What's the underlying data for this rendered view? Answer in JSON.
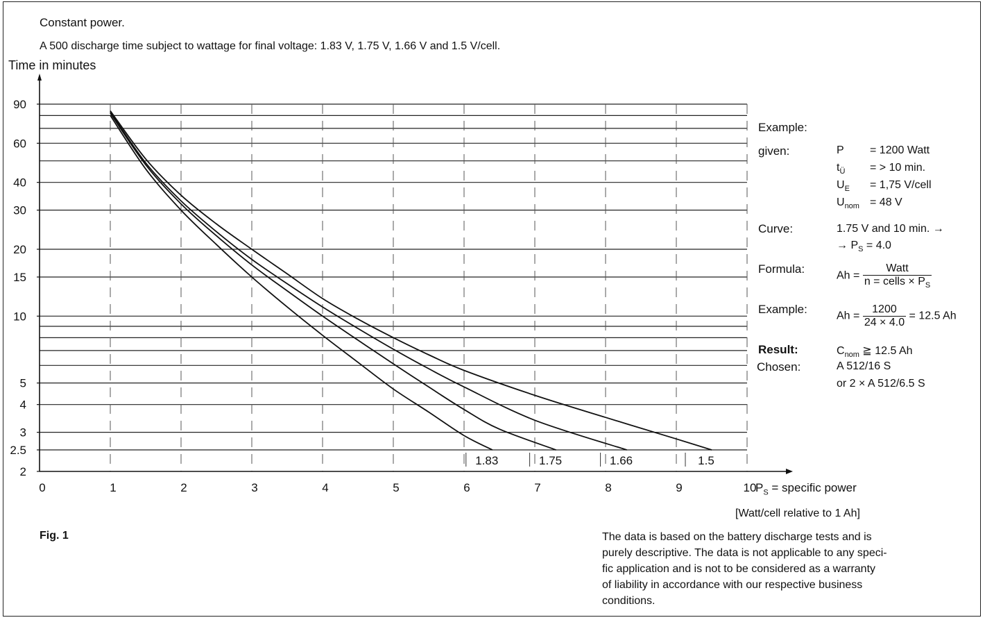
{
  "header": {
    "line1": "Constant power.",
    "line2": "A 500 discharge time subject to wattage for final voltage: 1.83 V, 1.75 V, 1.66 V and 1.5 V/cell."
  },
  "chart_data": {
    "type": "line",
    "title": "A 500 discharge time subject to wattage for final voltage: 1.83 V, 1.75 V, 1.66 V and 1.5 V/cell.",
    "ylabel": "Time in minutes",
    "xlabel": "P_S = specific power",
    "xlabel_units": "[Watt/cell relative to 1 Ah]",
    "x_ticks": [
      0,
      1,
      2,
      3,
      4,
      5,
      6,
      7,
      8,
      9,
      10
    ],
    "y_ticks": [
      2,
      2.5,
      3,
      4,
      5,
      10,
      15,
      20,
      30,
      40,
      60,
      90
    ],
    "y_scale": "log",
    "xlim": [
      0,
      10
    ],
    "ylim": [
      2,
      120
    ],
    "grid": true,
    "series": [
      {
        "name": "1.83",
        "x": [
          1,
          1.5,
          2,
          2.5,
          3,
          3.5,
          4,
          4.5,
          5,
          5.5,
          6,
          6.4
        ],
        "y": [
          80,
          46,
          30,
          21,
          15,
          11,
          8.2,
          6.2,
          4.7,
          3.7,
          2.9,
          2.5
        ]
      },
      {
        "name": "1.75",
        "x": [
          1,
          1.5,
          2,
          2.5,
          3,
          3.5,
          4,
          4.5,
          5,
          5.5,
          6,
          6.5,
          7.3
        ],
        "y": [
          82,
          48,
          32,
          23,
          17,
          13,
          10,
          7.8,
          6.1,
          4.8,
          3.8,
          3.1,
          2.5
        ]
      },
      {
        "name": "1.66",
        "x": [
          1,
          1.5,
          2,
          2.5,
          3,
          3.5,
          4,
          4.5,
          5,
          5.5,
          6,
          7,
          8.3
        ],
        "y": [
          83,
          49,
          33,
          24,
          18,
          14,
          11,
          8.8,
          7.1,
          5.8,
          4.8,
          3.4,
          2.5
        ]
      },
      {
        "name": "1.5",
        "x": [
          1,
          1.5,
          2,
          2.5,
          3,
          3.5,
          4,
          4.5,
          5,
          5.5,
          6,
          7,
          8,
          9,
          9.5
        ],
        "y": [
          84,
          51,
          35,
          26,
          20,
          15.5,
          12,
          9.7,
          8,
          6.7,
          5.7,
          4.4,
          3.5,
          2.8,
          2.5
        ]
      }
    ]
  },
  "fig_label": "Fig. 1",
  "example": {
    "heading": "Example:",
    "given_label": "given:",
    "given_items": [
      {
        "sym": "P",
        "sub": "",
        "val": "= 1200 Watt"
      },
      {
        "sym": "t",
        "sub": "Ü",
        "val": "= > 10 min."
      },
      {
        "sym": "U",
        "sub": "E",
        "val": "= 1,75 V/cell"
      },
      {
        "sym": "U",
        "sub": "nom",
        "val": "= 48 V"
      }
    ],
    "curve_label": "Curve:",
    "curve_line1": "1.75 V and 10 min. →",
    "curve_line2_pre": "→ P",
    "curve_line2_sub": "S",
    "curve_line2_post": " = 4.0",
    "formula_label": "Formula:",
    "formula_lhs": "Ah =",
    "formula_num": "Watt",
    "formula_den_pre": "n = cells × P",
    "formula_den_sub": "S",
    "example2_label": "Example:",
    "example2_lhs": "Ah =",
    "example2_num": "1200",
    "example2_den": "24 × 4.0",
    "example2_rhs": "= 12.5 Ah",
    "result_label": "Result:",
    "result_pre": "C",
    "result_sub": "nom",
    "result_post": " ≧ 12.5 Ah",
    "chosen_label": "Chosen:",
    "chosen_line1": "A 512/16 S",
    "chosen_line2": "or 2 × A 512/6.5 S"
  },
  "x_axis_title_pre": "P",
  "x_axis_title_sub": "S",
  "x_axis_title_post": " = specific power",
  "disclaimer": [
    "The data is based on the battery discharge tests and is",
    "purely descriptive. The data is not applicable to any speci-",
    "fic application and is not to be considered as a warranty",
    "of liability in accordance with our respective business",
    "conditions."
  ]
}
